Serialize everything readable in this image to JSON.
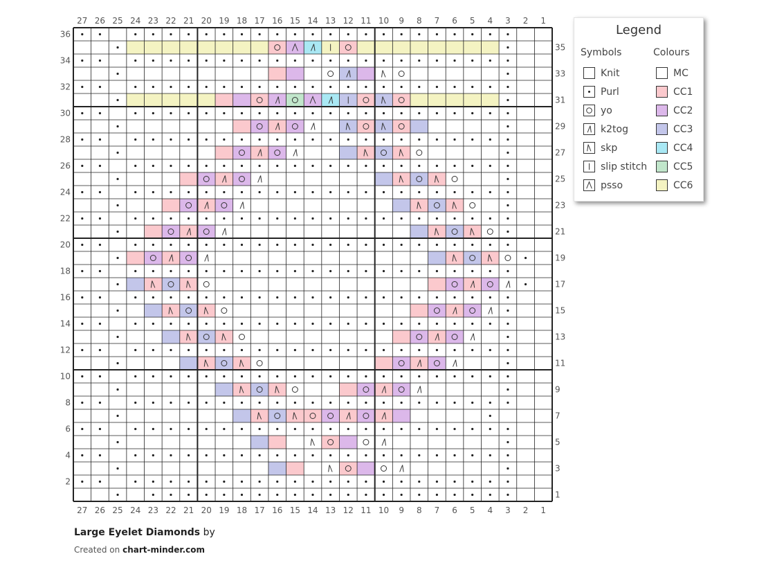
{
  "chart": {
    "cols": 27,
    "rows": 36,
    "col_labels": [
      27,
      26,
      25,
      24,
      23,
      22,
      21,
      20,
      19,
      18,
      17,
      16,
      15,
      14,
      13,
      12,
      11,
      10,
      9,
      8,
      7,
      6,
      5,
      4,
      3,
      2,
      1
    ],
    "row_labels_left": [
      36,
      34,
      32,
      30,
      28,
      26,
      24,
      22,
      20,
      18,
      16,
      14,
      12,
      10,
      8,
      6,
      4,
      2
    ],
    "row_labels_right": [
      35,
      33,
      31,
      29,
      27,
      25,
      23,
      21,
      19,
      17,
      15,
      13,
      11,
      9,
      7,
      5,
      3,
      1
    ],
    "colors": {
      "MC": "#ffffff",
      "CC1": "#fbc9cd",
      "CC2": "#dcb8ea",
      "CC3": "#c3c6ea",
      "CC4": "#a9e8f4",
      "CC5": "#c1e6cb",
      "CC6": "#f4f3c2"
    },
    "symbol_codes": {
      ".": "purl",
      "o": "yo",
      "/": "k2tog",
      "\\": "skp",
      "|": "slip stitch",
      "^": "psso"
    },
    "colour_codes": {
      "1": "CC1",
      "2": "CC2",
      "3": "CC3",
      "4": "CC4",
      "5": "CC5",
      "6": "CC6"
    },
    "rows_symbols": [
      "..-......................--",
      "--.--------o^/|o--------.--",
      "..-......................--",
      "--.-----------o/-\\o-----.--",
      "..-......................--",
      "--.-------o/o^/|o\\o-----.--",
      "..-......................--",
      "--.-------o/o/-\\o\\o-----.--",
      "..-......................--",
      "--.------o/o/---\\o\\o----.--",
      "..-......................--",
      "--.----o/o/-------\\o\\o--.--",
      "..-......................--",
      "--.---o/o/---------\\o\\o-.--",
      "..-......................--",
      "--.--o/o/-----------\\o\\o.--",
      "..-......................--",
      "--.-o/o/-------------\\o\\o.-",
      "..-......................--",
      "--.-\\o\\o-------------o/o/.-",
      "..-......................--",
      "--.--\\o\\o-----------o/o/.--",
      "..-......................--",
      "--.---\\o\\o---------o/o/-.--",
      "..-......................--",
      "--.----\\o\\o-------o/o/--.--",
      "..-......................--",
      "--.------\\o\\o---o/o/----.--",
      "..-......................--",
      "--.-------\\o\\oo/o/-----.--",
      "..-......................--",
      "--.----------\\o-o/------.--",
      "..-......................--",
      "--.-----------\\o-o/-----.--",
      "..-......................--",
      "--.-.....................--"
    ],
    "rows_colours": [
      "000000000000000000000000000",
      "000666666661246166666666000",
      "000000000000000000000000000",
      "000000000001200320000000000",
      "000000000000000000000000000",
      "000666661212524313166666000",
      "000000000000000000000000000",
      "000000000121200313130000000",
      "000000000000000000000000000",
      "000000001212000313100000000",
      "000000000000000000000000000",
      "000000121200000003131000000",
      "000000000000000000000000000",
      "000001212000000000313100000",
      "000000000000000000000000000",
      "000012120000000000031310000",
      "000000000000000000000000000",
      "000121200000000000003131000",
      "000000000000000000000000000",
      "000313100000000000001212000",
      "000000000000000000000000000",
      "000031310000000000012120000",
      "000000000000000000000000000",
      "000003131000000000121200000",
      "000000000000000000000000000",
      "000000313100000001212000000",
      "000000000000000000000000000",
      "000000003131000121200000000",
      "000000000000000000000000000",
      "000000000313112121200000000",
      "000000000000000000000000000",
      "000000000031001200000000000",
      "000000000000000000000000000",
      "000000000003100120000000000",
      "000000000000000000000000000",
      "000000000000000000000000000"
    ]
  },
  "legend": {
    "title": "Legend",
    "symbols_title": "Symbols",
    "colours_title": "Colours",
    "symbols": [
      {
        "label": "Knit",
        "icon": "knit-icon"
      },
      {
        "label": "Purl",
        "icon": "purl-icon"
      },
      {
        "label": "yo",
        "icon": "yo-icon"
      },
      {
        "label": "k2tog",
        "icon": "k2tog-icon"
      },
      {
        "label": "skp",
        "icon": "skp-icon"
      },
      {
        "label": "slip stitch",
        "icon": "slip-stitch-icon"
      },
      {
        "label": "psso",
        "icon": "psso-icon"
      }
    ],
    "colours": [
      {
        "label": "MC",
        "color": "#ffffff"
      },
      {
        "label": "CC1",
        "color": "#fbc9cd"
      },
      {
        "label": "CC2",
        "color": "#dcb8ea"
      },
      {
        "label": "CC3",
        "color": "#c3c6ea"
      },
      {
        "label": "CC4",
        "color": "#a9e8f4"
      },
      {
        "label": "CC5",
        "color": "#c1e6cb"
      },
      {
        "label": "CC6",
        "color": "#f4f3c2"
      }
    ]
  },
  "footer": {
    "title": "Large Eyelet Diamonds",
    "by": "by",
    "created_prefix": "Created on",
    "site": "chart-minder.com"
  }
}
